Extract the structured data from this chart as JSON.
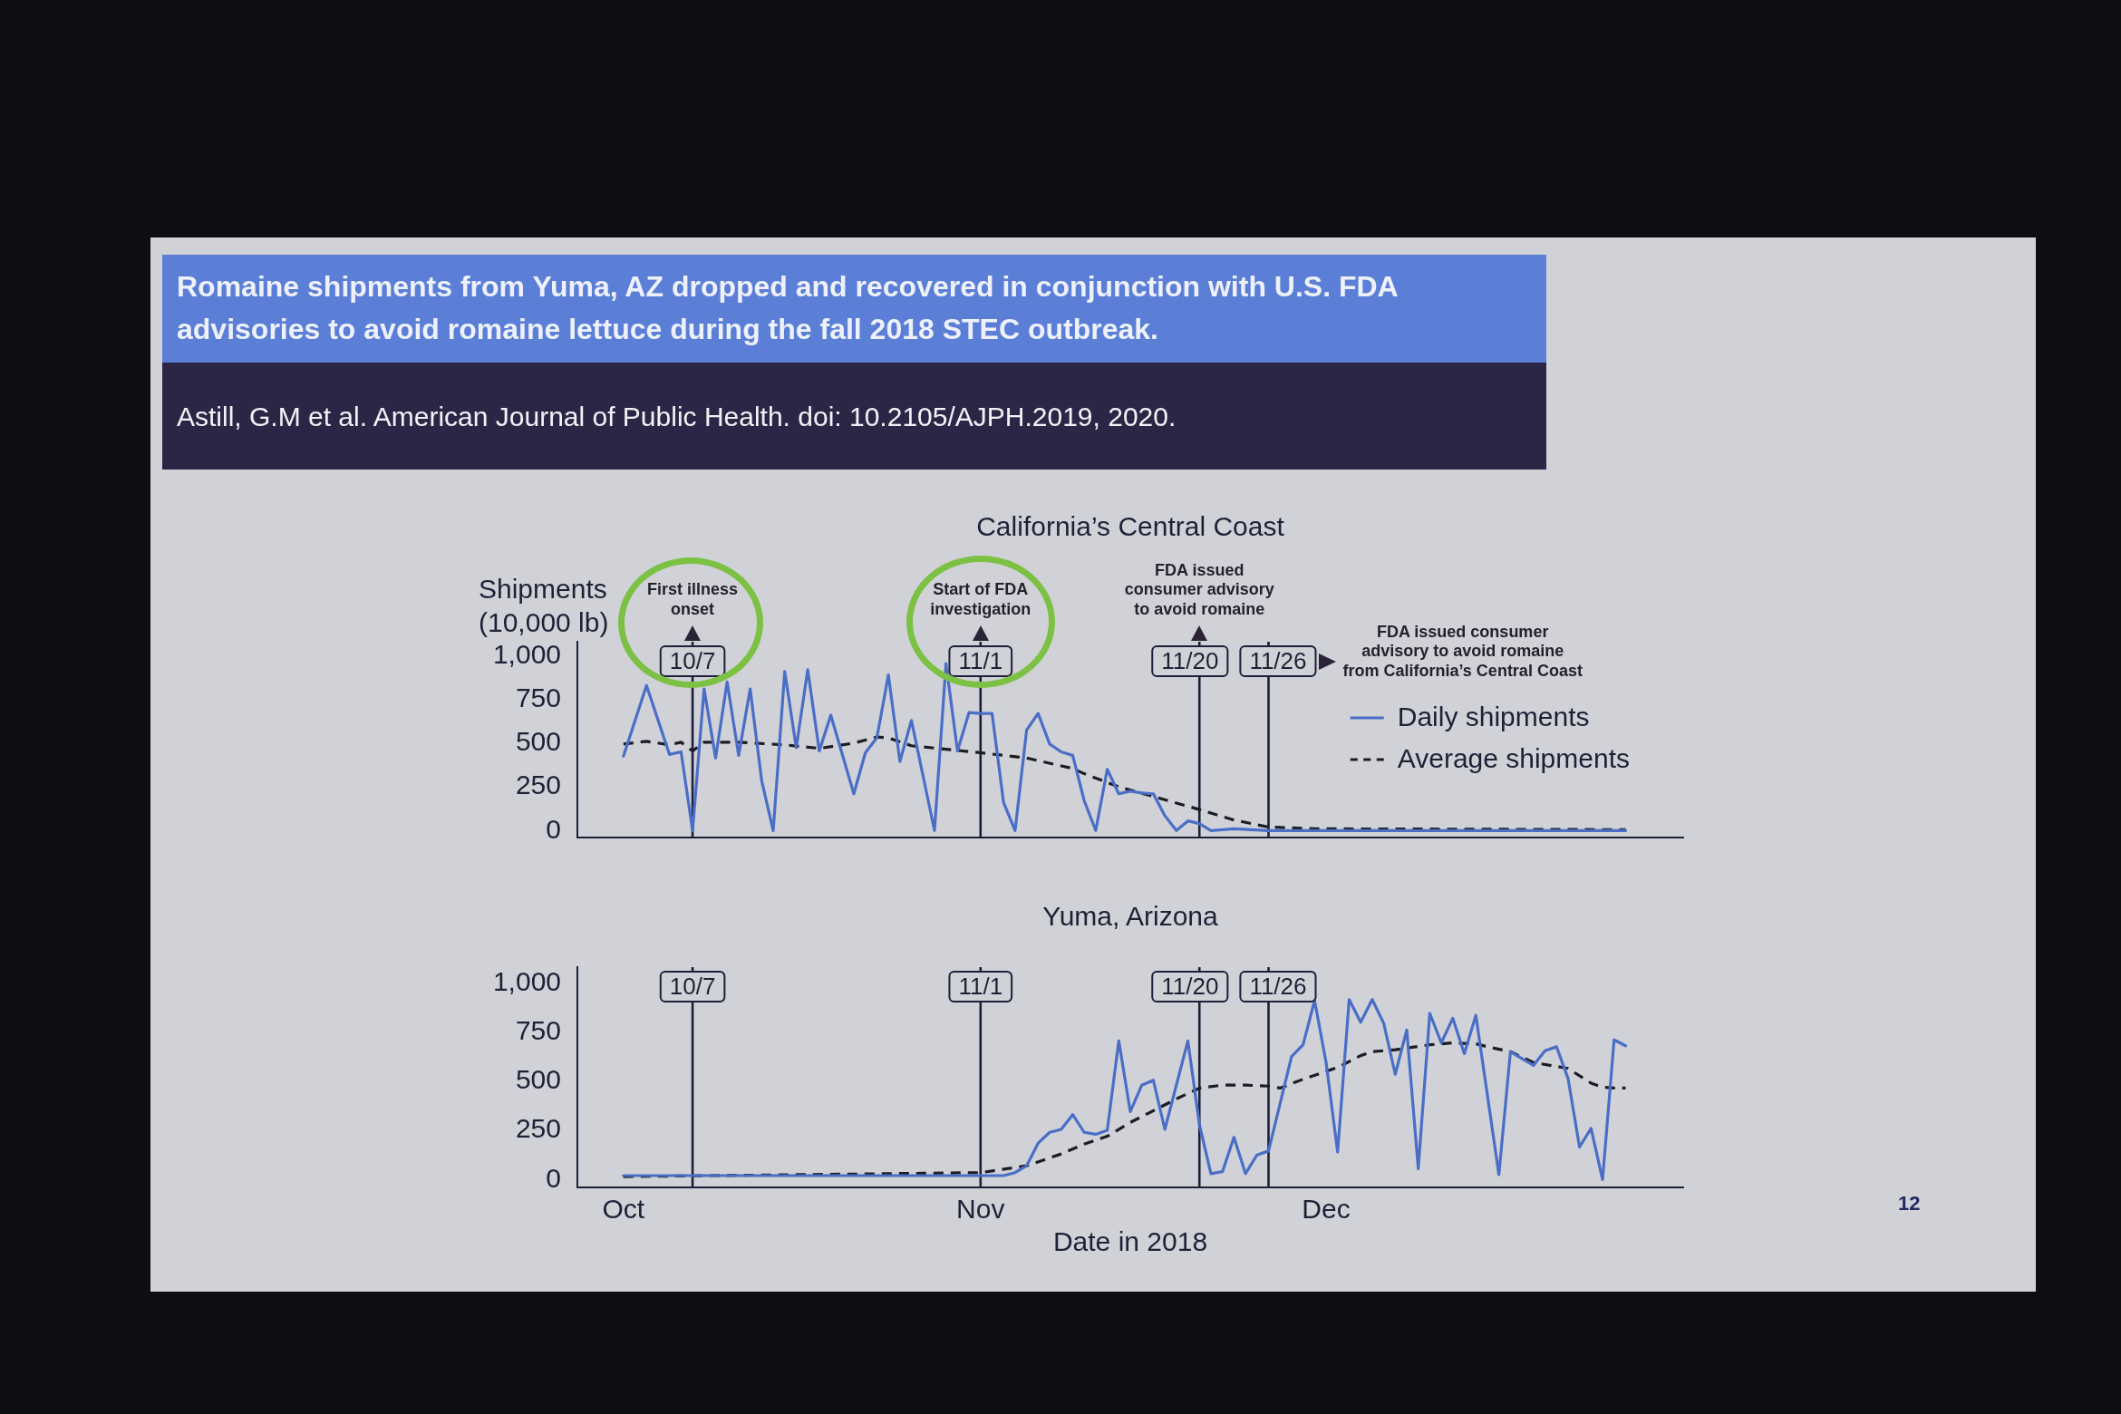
{
  "chart_data": [
    {
      "type": "other",
      "title": "Romaine shipments from Yuma, AZ dropped and recovered in conjunction with U.S. FDA advisories to avoid romaine lettuce during the fall 2018 STEC outbreak.",
      "annotations": [
        "Astill, G.M et al. American Journal of Public Health. doi: 10.2105/AJPH.2019, 2020.",
        "12"
      ]
    },
    {
      "type": "line",
      "title": "California’s Central Coast",
      "ylabel": "Shipments (10,000 lb)",
      "tick_labels": "y",
      "legend": "top right",
      "xlim": [
        "2018-09-27",
        "2019-01-01"
      ],
      "ylim": [
        -40,
        1080
      ],
      "yticks": [
        0,
        250,
        500,
        750,
        {
          "value": 1000,
          "label": "1,000"
        }
      ],
      "series": [
        {
          "name": "Daily shipments",
          "color": "#4a6ec6",
          "line_style": "solid",
          "x": [
            "2018-10-01",
            "2018-10-03",
            "2018-10-05",
            "2018-10-06",
            "2018-10-07",
            "2018-10-08",
            "2018-10-09",
            "2018-10-10",
            "2018-10-11",
            "2018-10-12",
            "2018-10-13",
            "2018-10-14",
            "2018-10-15",
            "2018-10-16",
            "2018-10-17",
            "2018-10-18",
            "2018-10-19",
            "2018-10-21",
            "2018-10-22",
            "2018-10-23",
            "2018-10-24",
            "2018-10-25",
            "2018-10-26",
            "2018-10-28",
            "2018-10-29",
            "2018-10-30",
            "2018-10-31",
            "2018-11-01",
            "2018-11-02",
            "2018-11-03",
            "2018-11-04",
            "2018-11-05",
            "2018-11-06",
            "2018-11-07",
            "2018-11-08",
            "2018-11-09",
            "2018-11-10",
            "2018-11-11",
            "2018-11-12",
            "2018-11-13",
            "2018-11-14",
            "2018-11-15",
            "2018-11-16",
            "2018-11-17",
            "2018-11-18",
            "2018-11-19",
            "2018-11-20",
            "2018-11-21",
            "2018-11-23",
            "2018-11-26",
            "2018-12-27"
          ],
          "values": [
            425,
            830,
            435,
            450,
            0,
            810,
            415,
            850,
            430,
            810,
            285,
            0,
            910,
            475,
            920,
            455,
            660,
            210,
            445,
            530,
            890,
            395,
            630,
            0,
            955,
            455,
            675,
            670,
            670,
            160,
            0,
            575,
            670,
            495,
            450,
            430,
            170,
            0,
            350,
            210,
            225,
            215,
            210,
            85,
            0,
            55,
            40,
            0,
            10,
            0,
            0
          ]
        },
        {
          "name": "Average shipments",
          "color": "#1c1c24",
          "line_style": "dashed",
          "x": [
            "2018-10-01",
            "2018-10-03",
            "2018-10-05",
            "2018-10-06",
            "2018-10-07",
            "2018-10-08",
            "2018-10-11",
            "2018-10-15",
            "2018-10-18",
            "2018-10-21",
            "2018-10-23",
            "2018-10-24",
            "2018-10-26",
            "2018-10-29",
            "2018-11-01",
            "2018-11-05",
            "2018-11-09",
            "2018-11-10",
            "2018-11-13",
            "2018-11-16",
            "2018-11-20",
            "2018-11-23",
            "2018-11-26",
            "2018-11-30",
            "2018-12-27"
          ],
          "values": [
            495,
            510,
            490,
            505,
            455,
            505,
            505,
            490,
            470,
            500,
            535,
            530,
            485,
            465,
            445,
            415,
            355,
            325,
            250,
            195,
            120,
            60,
            20,
            10,
            5
          ]
        }
      ],
      "ref_lines": [
        {
          "axis": "x",
          "value": "2018-10-07",
          "label": "10/7",
          "color": "#1d1f3b"
        },
        {
          "axis": "x",
          "value": "2018-11-01",
          "label": "11/1",
          "color": "#1d1f3b"
        },
        {
          "axis": "x",
          "value": "2018-11-20",
          "label": "11/20",
          "color": "#1d1f3b"
        },
        {
          "axis": "x",
          "value": "2018-11-26",
          "label": "11/26",
          "color": "#1d1f3b"
        }
      ],
      "annotations": [
        "First illness onset",
        "Start of FDA investigation",
        "FDA issued consumer advisory to avoid romaine",
        "FDA issued consumer advisory to avoid romaine from California’s Central Coast"
      ]
    },
    {
      "type": "line",
      "title": "Yuma, Arizona",
      "xlabel": "Date in 2018",
      "xlim": [
        "2018-09-27",
        "2019-01-01"
      ],
      "xticks": [
        {
          "value": "2018-10-01",
          "label": "Oct"
        },
        {
          "value": "2018-11-01",
          "label": "Nov"
        },
        {
          "value": "2018-12-01",
          "label": "Dec"
        }
      ],
      "ylim": [
        -40,
        1080
      ],
      "yticks": [
        0,
        250,
        500,
        750,
        {
          "value": 1000,
          "label": "1,000"
        }
      ],
      "series": [
        {
          "color": "#4a6ec6",
          "line_style": "solid",
          "x": [
            "2018-10-01",
            "2018-11-01",
            "2018-11-03",
            "2018-11-04",
            "2018-11-05",
            "2018-11-06",
            "2018-11-07",
            "2018-11-08",
            "2018-11-09",
            "2018-11-10",
            "2018-11-11",
            "2018-11-12",
            "2018-11-13",
            "2018-11-14",
            "2018-11-15",
            "2018-11-16",
            "2018-11-17",
            "2018-11-19",
            "2018-11-20",
            "2018-11-21",
            "2018-11-22",
            "2018-11-23",
            "2018-11-24",
            "2018-11-25",
            "2018-11-26",
            "2018-11-28",
            "2018-11-29",
            "2018-11-30",
            "2018-12-01",
            "2018-12-02",
            "2018-12-03",
            "2018-12-04",
            "2018-12-05",
            "2018-12-06",
            "2018-12-07",
            "2018-12-08",
            "2018-12-09",
            "2018-12-10",
            "2018-12-11",
            "2018-12-12",
            "2018-12-13",
            "2018-12-14",
            "2018-12-16",
            "2018-12-17",
            "2018-12-19",
            "2018-12-20",
            "2018-12-21",
            "2018-12-22",
            "2018-12-23",
            "2018-12-24",
            "2018-12-25",
            "2018-12-26",
            "2018-12-27"
          ],
          "values": [
            20,
            20,
            20,
            35,
            70,
            185,
            240,
            255,
            330,
            240,
            230,
            250,
            705,
            345,
            480,
            505,
            255,
            705,
            280,
            30,
            40,
            215,
            30,
            125,
            145,
            625,
            685,
            910,
            595,
            140,
            915,
            800,
            915,
            795,
            535,
            760,
            55,
            845,
            695,
            820,
            640,
            835,
            25,
            650,
            580,
            655,
            675,
            515,
            165,
            260,
            0,
            710,
            680
          ]
        },
        {
          "color": "#1c1c24",
          "line_style": "dashed",
          "x": [
            "2018-10-01",
            "2018-11-01",
            "2018-11-05",
            "2018-11-08",
            "2018-11-10",
            "2018-11-12",
            "2018-11-14",
            "2018-11-16",
            "2018-11-18",
            "2018-11-20",
            "2018-11-22",
            "2018-11-24",
            "2018-11-26",
            "2018-11-27",
            "2018-11-29",
            "2018-12-02",
            "2018-12-04",
            "2018-12-05",
            "2018-12-07",
            "2018-12-10",
            "2018-12-12",
            "2018-12-14",
            "2018-12-15",
            "2018-12-17",
            "2018-12-19",
            "2018-12-21",
            "2018-12-22",
            "2018-12-24",
            "2018-12-25",
            "2018-12-26",
            "2018-12-27"
          ],
          "values": [
            15,
            35,
            70,
            130,
            180,
            220,
            290,
            350,
            410,
            465,
            480,
            480,
            475,
            465,
            510,
            570,
            630,
            650,
            660,
            685,
            695,
            690,
            675,
            650,
            595,
            575,
            565,
            490,
            470,
            465,
            465
          ]
        }
      ],
      "ref_lines": [
        {
          "axis": "x",
          "value": "2018-10-07",
          "label": "10/7",
          "color": "#1d1f3b"
        },
        {
          "axis": "x",
          "value": "2018-11-01",
          "label": "11/1",
          "color": "#1d1f3b"
        },
        {
          "axis": "x",
          "value": "2018-11-20",
          "label": "11/20",
          "color": "#1d1f3b"
        },
        {
          "axis": "x",
          "value": "2018-11-26",
          "label": "11/26",
          "color": "#1d1f3b"
        }
      ]
    }
  ]
}
